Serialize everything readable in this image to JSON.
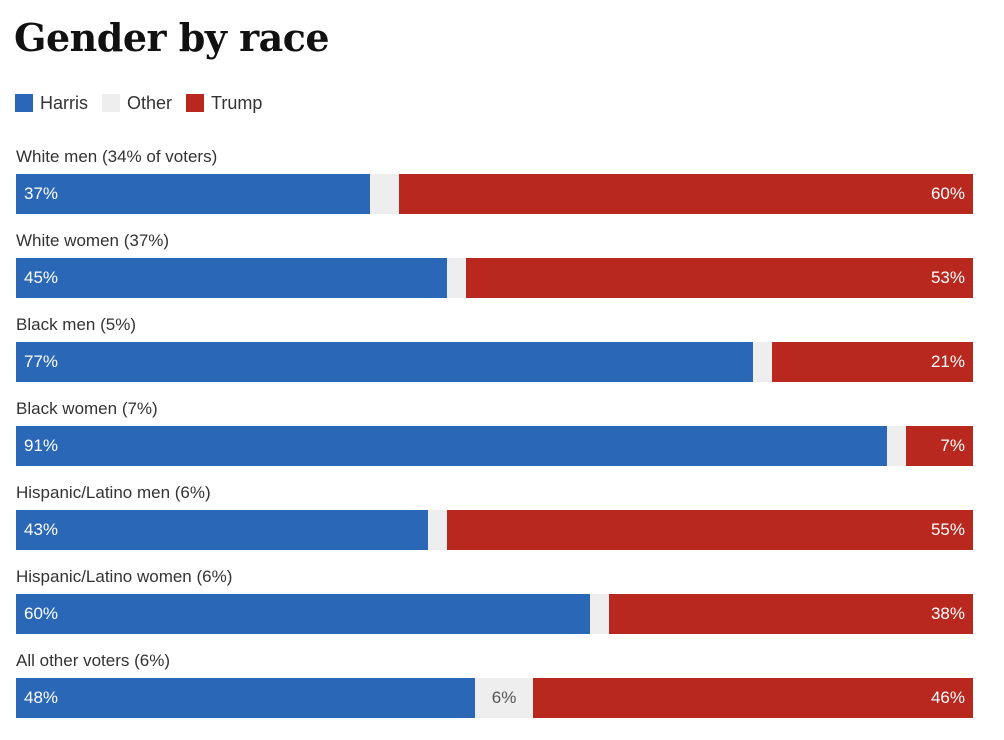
{
  "title": "Gender by race",
  "legend": [
    {
      "label": "Harris",
      "color": "#2b67b7"
    },
    {
      "label": "Other",
      "color": "#eeeeee"
    },
    {
      "label": "Trump",
      "color": "#b8281f"
    }
  ],
  "chart_data": {
    "type": "bar",
    "orientation": "horizontal",
    "stacked": true,
    "title": "Gender by race",
    "categories": [
      "White men (34% of voters)",
      "White women (37%)",
      "Black men (5%)",
      "Black women (7%)",
      "Hispanic/Latino men (6%)",
      "Hispanic/Latino women (6%)",
      "All other voters (6%)"
    ],
    "series": [
      {
        "name": "Harris",
        "values": [
          37,
          45,
          77,
          91,
          43,
          60,
          48
        ],
        "labels": [
          "37%",
          "45%",
          "77%",
          "91%",
          "43%",
          "60%",
          "48%"
        ]
      },
      {
        "name": "Other",
        "values": [
          3,
          2,
          2,
          2,
          2,
          2,
          6
        ],
        "labels": [
          "",
          "",
          "",
          "",
          "",
          "",
          "6%"
        ]
      },
      {
        "name": "Trump",
        "values": [
          60,
          53,
          21,
          7,
          55,
          38,
          46
        ],
        "labels": [
          "60%",
          "53%",
          "21%",
          "7%",
          "55%",
          "38%",
          "46%"
        ]
      }
    ],
    "xlim": [
      0,
      100
    ],
    "legend_position": "top-left"
  }
}
